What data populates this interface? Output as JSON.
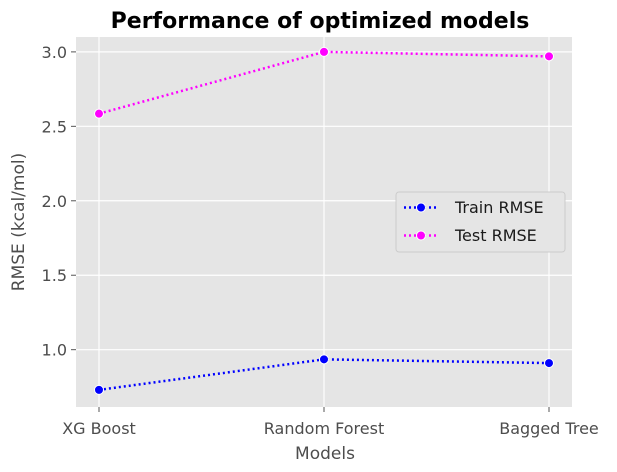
{
  "chart_data": {
    "type": "line",
    "title": "Performance of optimized models",
    "xlabel": "Models",
    "ylabel": "RMSE (kcal/mol)",
    "categories": [
      "XG Boost",
      "Random Forest",
      "Bagged Tree"
    ],
    "ylim": [
      0.615,
      3.1
    ],
    "yticks": [
      "1.0",
      "1.5",
      "2.0",
      "2.5",
      "3.0"
    ],
    "grid": true,
    "legend_position": "center-right",
    "background_color": "#e5e5e5",
    "series": [
      {
        "name": "Train RMSE",
        "values": [
          0.73,
          0.935,
          0.91
        ],
        "color": "#0000ff",
        "line_style": "dotted",
        "marker": "circle"
      },
      {
        "name": "Test RMSE",
        "values": [
          2.585,
          3.0,
          2.97
        ],
        "color": "#ff00ff",
        "line_style": "dotted",
        "marker": "circle"
      }
    ]
  }
}
